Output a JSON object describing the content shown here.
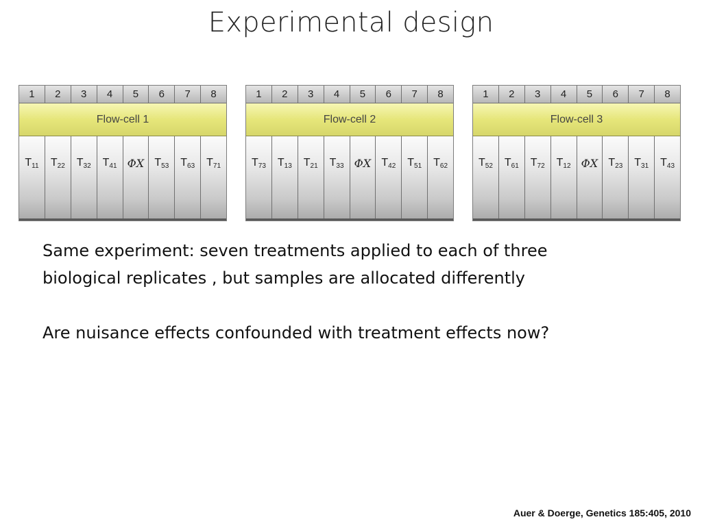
{
  "slide": {
    "title": "Experimental design",
    "paragraph1_line1": "Same experiment: seven treatments applied to each of three",
    "paragraph1_line2": "biological replicates , but samples are allocated differently",
    "paragraph2": "Are nuisance effects confounded with treatment effects now?",
    "citation": "Auer & Doerge, Genetics 185:405,  2010"
  },
  "flowcells": [
    {
      "label": "Flow-cell 1",
      "lane_numbers": [
        "1",
        "2",
        "3",
        "4",
        "5",
        "6",
        "7",
        "8"
      ],
      "lanes": [
        {
          "main": "T",
          "sub": "11"
        },
        {
          "main": "T",
          "sub": "22"
        },
        {
          "main": "T",
          "sub": "32"
        },
        {
          "main": "T",
          "sub": "41"
        },
        {
          "phi": "ΦX"
        },
        {
          "main": "T",
          "sub": "53"
        },
        {
          "main": "T",
          "sub": "63"
        },
        {
          "main": "T",
          "sub": "71"
        }
      ]
    },
    {
      "label": "Flow-cell 2",
      "lane_numbers": [
        "1",
        "2",
        "3",
        "4",
        "5",
        "6",
        "7",
        "8"
      ],
      "lanes": [
        {
          "main": "T",
          "sub": "73"
        },
        {
          "main": "T",
          "sub": "13"
        },
        {
          "main": "T",
          "sub": "21"
        },
        {
          "main": "T",
          "sub": "33"
        },
        {
          "phi": "ΦX"
        },
        {
          "main": "T",
          "sub": "42"
        },
        {
          "main": "T",
          "sub": "51"
        },
        {
          "main": "T",
          "sub": "62"
        }
      ]
    },
    {
      "label": "Flow-cell 3",
      "lane_numbers": [
        "1",
        "2",
        "3",
        "4",
        "5",
        "6",
        "7",
        "8"
      ],
      "lanes": [
        {
          "main": "T",
          "sub": "52"
        },
        {
          "main": "T",
          "sub": "61"
        },
        {
          "main": "T",
          "sub": "72"
        },
        {
          "main": "T",
          "sub": "12"
        },
        {
          "phi": "ΦX"
        },
        {
          "main": "T",
          "sub": "23"
        },
        {
          "main": "T",
          "sub": "31"
        },
        {
          "main": "T",
          "sub": "43"
        }
      ]
    }
  ],
  "colors": {
    "flowcell_label_bg": "#e6e67a",
    "lane_gradient_top": "#fbfbfb",
    "lane_gradient_bottom": "#a9a9a9"
  }
}
